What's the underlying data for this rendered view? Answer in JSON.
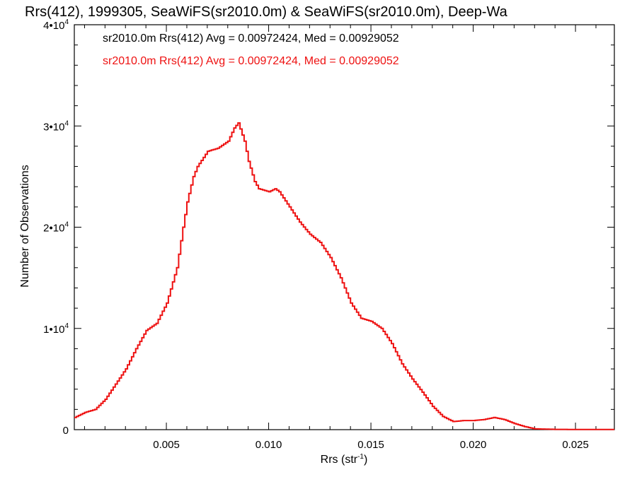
{
  "chart_data": {
    "type": "line",
    "title": "Rrs(412), 1999305, SeaWiFS(sr2010.0m) & SeaWiFS(sr2010.0m), Deep-Wa",
    "xlabel": "Rrs (str",
    "xlabel_sup": "-1",
    "xlabel_close": ")",
    "ylabel": "Number of Observations",
    "xlim": [
      0.0005,
      0.0269
    ],
    "ylim": [
      0,
      40000
    ],
    "grid": false,
    "x_ticks": [
      {
        "value": 0.005,
        "label": "0.005"
      },
      {
        "value": 0.01,
        "label": "0.010"
      },
      {
        "value": 0.015,
        "label": "0.015"
      },
      {
        "value": 0.02,
        "label": "0.020"
      },
      {
        "value": 0.025,
        "label": "0.025"
      }
    ],
    "y_ticks": [
      {
        "value": 0,
        "label": "0",
        "sup": ""
      },
      {
        "value": 10000,
        "label": "1•10",
        "sup": "4"
      },
      {
        "value": 20000,
        "label": "2•10",
        "sup": "4"
      },
      {
        "value": 30000,
        "label": "3•10",
        "sup": "4"
      },
      {
        "value": 40000,
        "label": "4•10",
        "sup": "4"
      }
    ],
    "legend": {
      "placement": "top-left",
      "entries": [
        {
          "text": "sr2010.0m Rrs(412) Avg = 0.00972424, Med = 0.00929052",
          "color": "#000000"
        },
        {
          "text": "sr2010.0m Rrs(412) Avg = 0.00972424, Med = 0.00929052",
          "color": "#ee1111"
        }
      ]
    },
    "series": [
      {
        "color": "#ee1111",
        "points": [
          [
            0.0005,
            1200
          ],
          [
            0.001,
            1700
          ],
          [
            0.0015,
            2000
          ],
          [
            0.002,
            3000
          ],
          [
            0.0025,
            4500
          ],
          [
            0.003,
            6000
          ],
          [
            0.0035,
            8000
          ],
          [
            0.004,
            9800
          ],
          [
            0.0045,
            10500
          ],
          [
            0.005,
            12500
          ],
          [
            0.0055,
            16000
          ],
          [
            0.0058,
            20000
          ],
          [
            0.006,
            22500
          ],
          [
            0.0063,
            25000
          ],
          [
            0.0065,
            26000
          ],
          [
            0.007,
            27500
          ],
          [
            0.0075,
            27800
          ],
          [
            0.008,
            28500
          ],
          [
            0.0083,
            29800
          ],
          [
            0.0085,
            30300
          ],
          [
            0.0088,
            28500
          ],
          [
            0.009,
            26500
          ],
          [
            0.0093,
            24500
          ],
          [
            0.0095,
            23800
          ],
          [
            0.01,
            23500
          ],
          [
            0.0103,
            23800
          ],
          [
            0.0105,
            23500
          ],
          [
            0.011,
            22000
          ],
          [
            0.0115,
            20500
          ],
          [
            0.012,
            19300
          ],
          [
            0.0125,
            18500
          ],
          [
            0.013,
            17000
          ],
          [
            0.0135,
            15000
          ],
          [
            0.014,
            12500
          ],
          [
            0.0145,
            11000
          ],
          [
            0.015,
            10700
          ],
          [
            0.0155,
            10000
          ],
          [
            0.016,
            8500
          ],
          [
            0.0165,
            6500
          ],
          [
            0.017,
            5000
          ],
          [
            0.0175,
            3700
          ],
          [
            0.018,
            2300
          ],
          [
            0.0185,
            1300
          ],
          [
            0.019,
            800
          ],
          [
            0.0195,
            900
          ],
          [
            0.02,
            900
          ],
          [
            0.0205,
            1000
          ],
          [
            0.021,
            1200
          ],
          [
            0.0215,
            1000
          ],
          [
            0.022,
            600
          ],
          [
            0.0225,
            300
          ],
          [
            0.023,
            80
          ],
          [
            0.024,
            30
          ],
          [
            0.025,
            20
          ],
          [
            0.0269,
            20
          ]
        ]
      }
    ]
  }
}
